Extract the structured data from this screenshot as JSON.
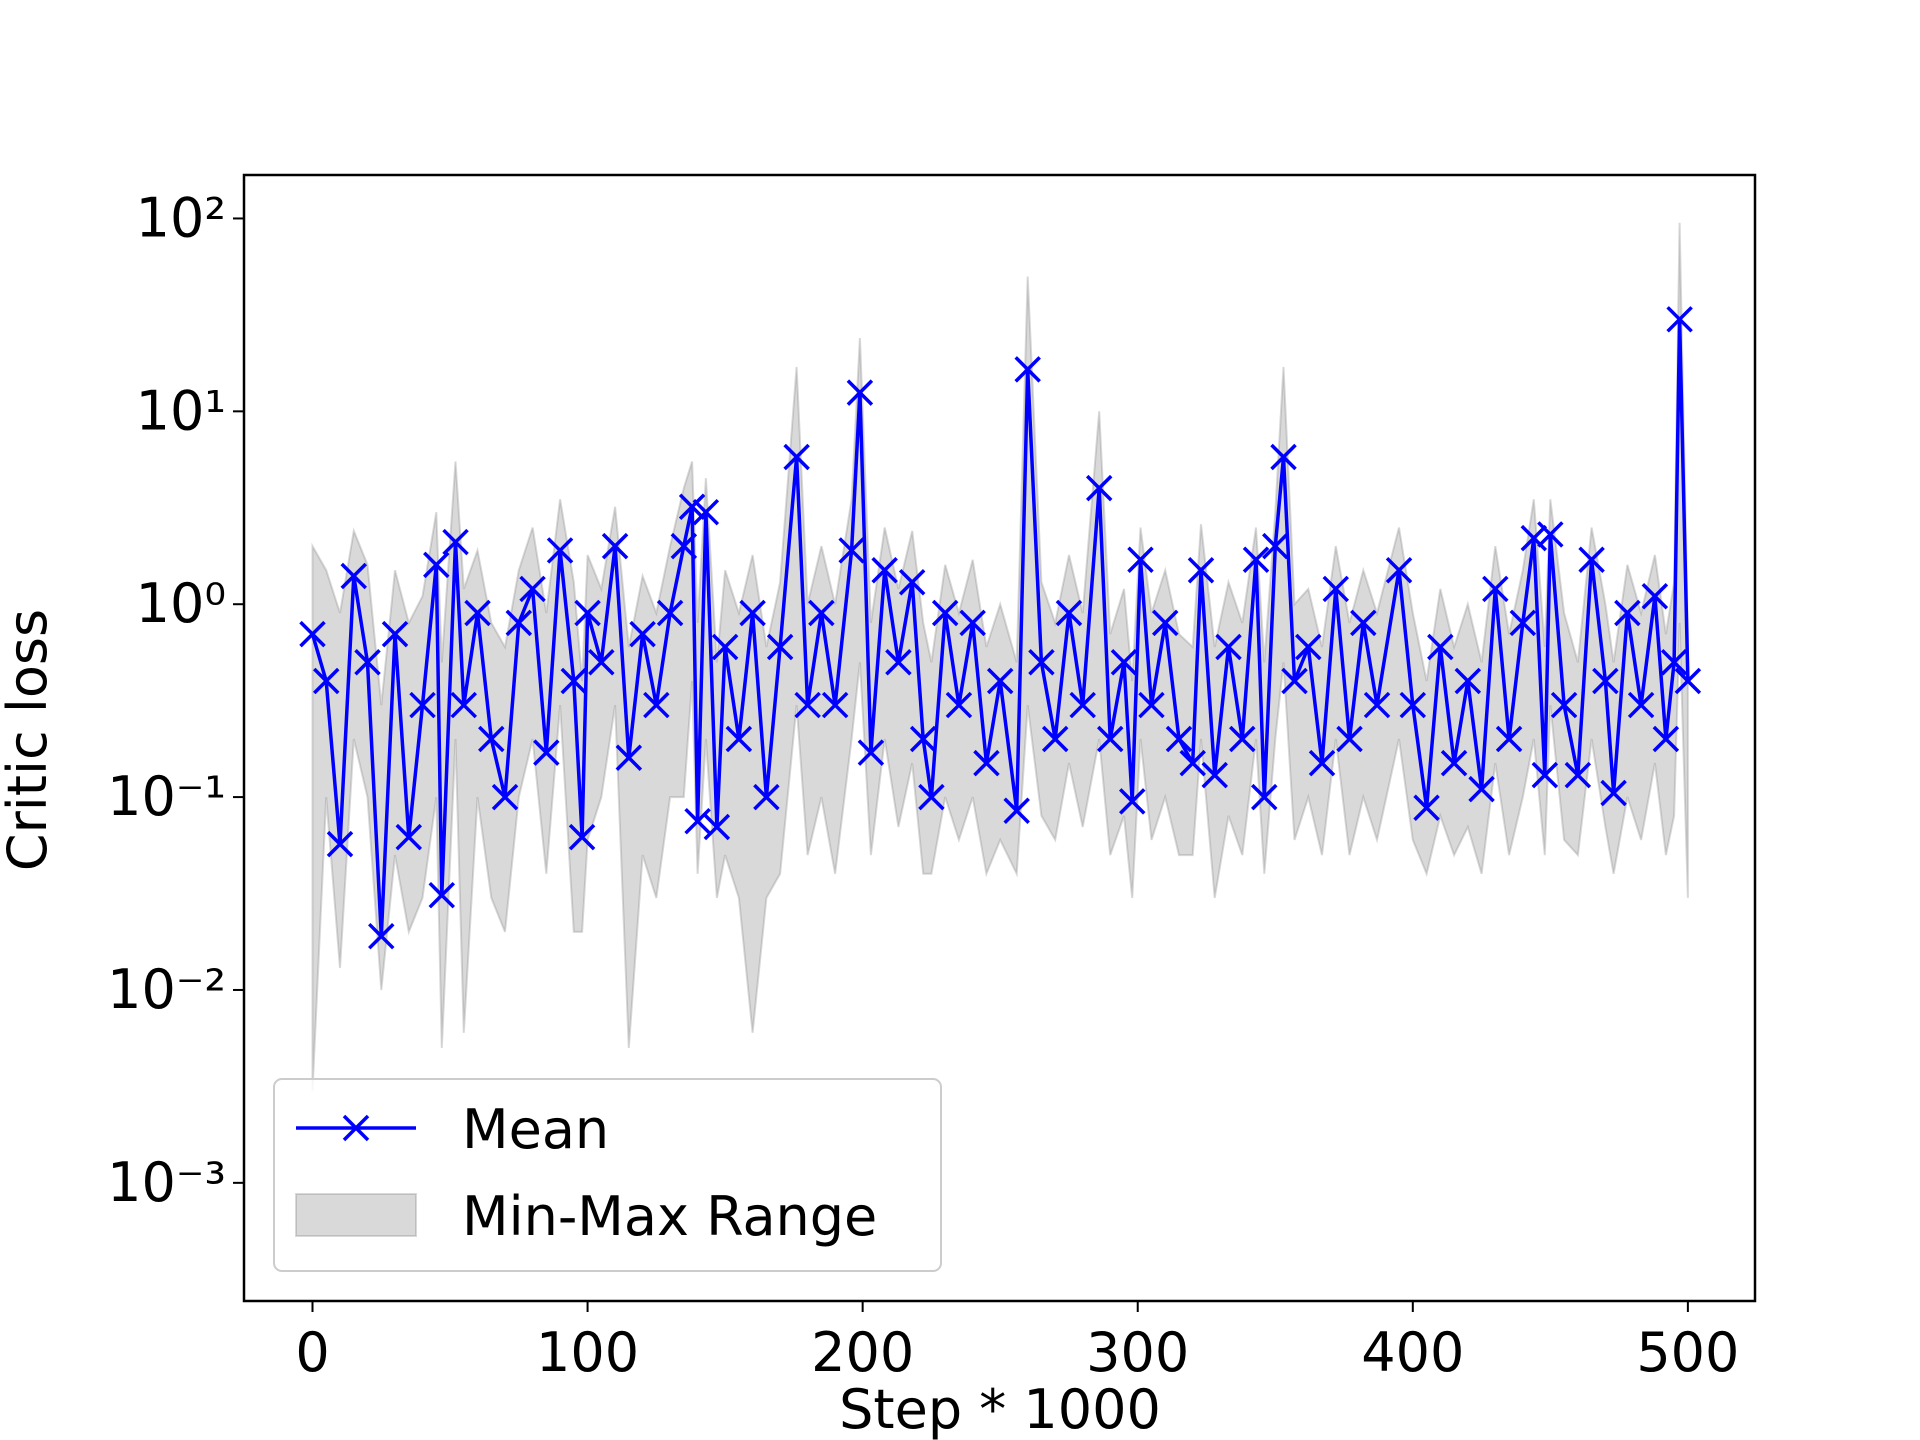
{
  "chart_data": {
    "type": "line",
    "xlabel": "Step * 1000",
    "ylabel": "Critic loss",
    "log_y": true,
    "legend": "lower left",
    "xlim": [
      -24.9,
      524.4
    ],
    "ylim": [
      0.000244,
      168
    ],
    "xticks": [
      0,
      100,
      200,
      300,
      400,
      500
    ],
    "yticks": [
      {
        "value": 0.001,
        "label": "10⁻³"
      },
      {
        "value": 0.01,
        "label": "10⁻²"
      },
      {
        "value": 0.1,
        "label": "10⁻¹"
      },
      {
        "value": 1,
        "label": "10⁰"
      },
      {
        "value": 10,
        "label": "10¹"
      },
      {
        "value": 100,
        "label": "10²"
      }
    ],
    "x": [
      0,
      5,
      10,
      15,
      20,
      25,
      30,
      35,
      40,
      45,
      47,
      52,
      55,
      60,
      65,
      70,
      75,
      80,
      85,
      90,
      95,
      98,
      100,
      105,
      110,
      115,
      120,
      125,
      130,
      135,
      138,
      140,
      143,
      147,
      150,
      155,
      160,
      165,
      170,
      176,
      180,
      185,
      190,
      196,
      199,
      203,
      208,
      213,
      218,
      222,
      225,
      230,
      235,
      240,
      245,
      250,
      256,
      260,
      265,
      270,
      275,
      280,
      286,
      290,
      295,
      298,
      301,
      305,
      310,
      315,
      320,
      323,
      328,
      333,
      338,
      343,
      346,
      350,
      353,
      357,
      362,
      367,
      372,
      377,
      382,
      387,
      395,
      400,
      405,
      410,
      415,
      420,
      425,
      430,
      435,
      440,
      444,
      448,
      450,
      455,
      460,
      465,
      470,
      473,
      478,
      483,
      488,
      492,
      495,
      497,
      500
    ],
    "series": [
      {
        "name": "Mean",
        "color": "#0000ff",
        "marker": "x",
        "values": [
          0.7,
          0.4,
          0.057,
          1.4,
          0.5,
          0.019,
          0.7,
          0.062,
          0.3,
          1.6,
          0.031,
          2.1,
          0.3,
          0.9,
          0.2,
          0.1,
          0.8,
          1.2,
          0.17,
          1.9,
          0.4,
          0.062,
          0.9,
          0.5,
          2.0,
          0.16,
          0.7,
          0.3,
          0.9,
          2.0,
          3.2,
          0.075,
          3.0,
          0.07,
          0.6,
          0.2,
          0.9,
          0.1,
          0.6,
          5.8,
          0.3,
          0.9,
          0.3,
          1.9,
          12.5,
          0.17,
          1.5,
          0.5,
          1.3,
          0.2,
          0.1,
          0.9,
          0.3,
          0.8,
          0.15,
          0.4,
          0.085,
          16.5,
          0.5,
          0.2,
          0.9,
          0.3,
          4.0,
          0.2,
          0.5,
          0.095,
          1.7,
          0.3,
          0.8,
          0.2,
          0.15,
          1.5,
          0.13,
          0.6,
          0.2,
          1.7,
          0.1,
          2.0,
          5.8,
          0.4,
          0.6,
          0.15,
          1.2,
          0.2,
          0.8,
          0.3,
          1.5,
          0.3,
          0.088,
          0.6,
          0.15,
          0.4,
          0.11,
          1.2,
          0.2,
          0.8,
          2.2,
          0.13,
          2.3,
          0.3,
          0.13,
          1.7,
          0.4,
          0.105,
          0.9,
          0.3,
          1.1,
          0.2,
          0.5,
          30,
          0.4
        ]
      },
      {
        "name": "Min-Max Range",
        "color": "#808080",
        "alpha": 0.3,
        "min": [
          0.003,
          0.1,
          0.013,
          0.2,
          0.1,
          0.01,
          0.05,
          0.02,
          0.03,
          0.1,
          0.005,
          0.2,
          0.006,
          0.1,
          0.03,
          0.02,
          0.1,
          0.2,
          0.04,
          0.3,
          0.02,
          0.02,
          0.06,
          0.1,
          0.3,
          0.005,
          0.05,
          0.03,
          0.1,
          0.1,
          0.4,
          0.04,
          0.2,
          0.03,
          0.05,
          0.03,
          0.006,
          0.03,
          0.04,
          0.3,
          0.05,
          0.1,
          0.04,
          0.2,
          0.5,
          0.05,
          0.2,
          0.07,
          0.15,
          0.04,
          0.04,
          0.1,
          0.06,
          0.1,
          0.04,
          0.06,
          0.04,
          0.3,
          0.08,
          0.06,
          0.15,
          0.07,
          0.2,
          0.05,
          0.08,
          0.03,
          0.2,
          0.06,
          0.1,
          0.05,
          0.05,
          0.2,
          0.03,
          0.08,
          0.05,
          0.2,
          0.04,
          0.2,
          0.5,
          0.06,
          0.1,
          0.05,
          0.2,
          0.05,
          0.1,
          0.06,
          0.2,
          0.06,
          0.04,
          0.08,
          0.05,
          0.07,
          0.04,
          0.15,
          0.05,
          0.1,
          0.2,
          0.05,
          0.3,
          0.06,
          0.05,
          0.2,
          0.07,
          0.04,
          0.1,
          0.06,
          0.15,
          0.05,
          0.08,
          0.8,
          0.03
        ],
        "max": [
          2.0,
          1.5,
          0.9,
          2.4,
          1.6,
          0.3,
          1.5,
          0.8,
          1.1,
          3.0,
          0.5,
          5.5,
          1.2,
          1.9,
          0.8,
          0.6,
          1.5,
          2.5,
          0.9,
          3.5,
          1.3,
          0.4,
          1.8,
          1.2,
          3.2,
          0.6,
          1.4,
          0.9,
          2.0,
          4.0,
          5.5,
          0.8,
          4.5,
          0.5,
          1.5,
          0.9,
          1.8,
          0.6,
          1.3,
          17,
          1.0,
          2.0,
          1.0,
          3.5,
          24,
          0.8,
          2.5,
          1.2,
          2.4,
          0.8,
          0.5,
          1.6,
          0.9,
          1.7,
          0.6,
          1.0,
          0.5,
          50,
          1.3,
          0.8,
          1.8,
          0.9,
          10,
          0.7,
          1.2,
          0.4,
          2.5,
          0.9,
          1.5,
          0.7,
          0.6,
          2.6,
          0.6,
          1.3,
          0.8,
          2.5,
          0.5,
          3.0,
          17,
          1.0,
          1.2,
          0.6,
          2.0,
          0.8,
          1.5,
          0.9,
          2.5,
          0.9,
          0.4,
          1.2,
          0.6,
          1.0,
          0.5,
          2.0,
          0.7,
          1.5,
          3.5,
          0.6,
          3.5,
          0.9,
          0.5,
          2.5,
          1.0,
          0.5,
          1.6,
          0.9,
          1.8,
          0.7,
          1.3,
          95,
          0.7
        ]
      }
    ]
  }
}
